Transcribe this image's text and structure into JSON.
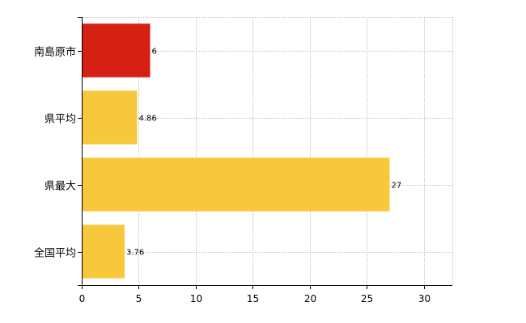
{
  "chart_data": {
    "type": "bar",
    "orientation": "horizontal",
    "categories": [
      "南島原市",
      "県平均",
      "県最大",
      "全国平均"
    ],
    "values": [
      6,
      4.86,
      27,
      3.76
    ],
    "value_labels": [
      "6",
      "4.86",
      "27",
      "3.76"
    ],
    "colors": [
      "#d42114",
      "#f8c83c",
      "#f8c83c",
      "#f8c83c"
    ],
    "xlim": [
      0,
      32.5
    ],
    "xticks": [
      0,
      5,
      10,
      15,
      20,
      25,
      30
    ],
    "grid": true,
    "title": "",
    "xlabel": "",
    "ylabel": ""
  }
}
